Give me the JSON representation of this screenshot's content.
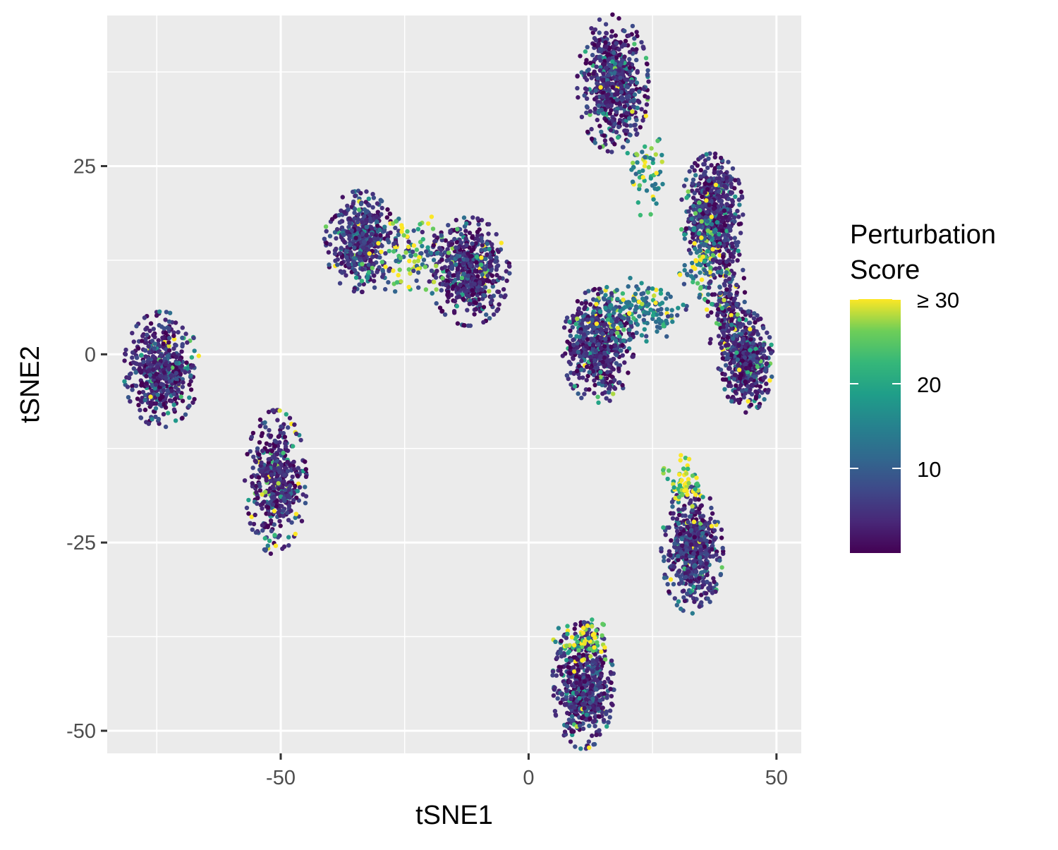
{
  "chart_data": {
    "type": "scatter",
    "title": "",
    "xlabel": "tSNE1",
    "ylabel": "tSNE2",
    "xlim": [
      -85,
      55
    ],
    "ylim": [
      -53,
      45
    ],
    "x_ticks": [
      -50,
      0,
      50
    ],
    "y_ticks": [
      -50,
      -25,
      0,
      25
    ],
    "x_tick_labels": [
      "-50",
      "0",
      "50"
    ],
    "y_tick_labels": [
      "-50",
      "-25",
      "0",
      "25"
    ],
    "grid": true,
    "background": "#ebebeb",
    "colorscale": "viridis",
    "legend": {
      "title_line1": "Perturbation",
      "title_line2": "Score",
      "position": "right",
      "range": [
        0,
        30
      ],
      "ticks": [
        {
          "value": 10,
          "label": "10"
        },
        {
          "value": 20,
          "label": "20"
        },
        {
          "value": 30,
          "label": "≥ 30"
        }
      ]
    },
    "colors": {
      "low": "#440154",
      "mid_low": "#3b528b",
      "mid": "#21908c",
      "mid_high": "#5dc863",
      "high": "#fde725"
    },
    "clusters": [
      {
        "cx": -74,
        "cy": -2,
        "sx": 3.2,
        "sy": 3.2,
        "n": 520,
        "base": 4,
        "high_fraction": 0.03
      },
      {
        "cx": -51,
        "cy": -17,
        "sx": 2.6,
        "sy": 4.0,
        "n": 480,
        "base": 4,
        "high_fraction": 0.06
      },
      {
        "cx": -34,
        "cy": 15,
        "sx": 3.0,
        "sy": 2.8,
        "n": 480,
        "base": 5,
        "high_fraction": 0.03
      },
      {
        "cx": -12,
        "cy": 11,
        "sx": 3.4,
        "sy": 3.0,
        "n": 560,
        "base": 4,
        "high_fraction": 0.03
      },
      {
        "cx": -23,
        "cy": 13,
        "sx": 4.5,
        "sy": 2.5,
        "n": 130,
        "base": 8,
        "high_fraction": 0.45
      },
      {
        "cx": 17,
        "cy": 36,
        "sx": 3.0,
        "sy": 3.8,
        "n": 640,
        "base": 4,
        "high_fraction": 0.02
      },
      {
        "cx": 24,
        "cy": 24,
        "sx": 1.8,
        "sy": 3.2,
        "n": 60,
        "base": 14,
        "high_fraction": 0.5
      },
      {
        "cx": 14,
        "cy": 1,
        "sx": 3.0,
        "sy": 3.2,
        "n": 560,
        "base": 4,
        "high_fraction": 0.03
      },
      {
        "cx": 22,
        "cy": 6,
        "sx": 4.5,
        "sy": 1.8,
        "n": 180,
        "base": 12,
        "high_fraction": 0.15
      },
      {
        "cx": 37,
        "cy": 19,
        "sx": 2.6,
        "sy": 3.2,
        "n": 560,
        "base": 4,
        "high_fraction": 0.02
      },
      {
        "cx": 35,
        "cy": 13,
        "sx": 2.0,
        "sy": 3.0,
        "n": 120,
        "base": 12,
        "high_fraction": 0.35
      },
      {
        "cx": 40,
        "cy": 6,
        "sx": 1.6,
        "sy": 4.0,
        "n": 220,
        "base": 4,
        "high_fraction": 0.05
      },
      {
        "cx": 44,
        "cy": -1,
        "sx": 2.2,
        "sy": 2.8,
        "n": 480,
        "base": 4,
        "high_fraction": 0.04
      },
      {
        "cx": 33,
        "cy": -26,
        "sx": 2.6,
        "sy": 3.5,
        "n": 560,
        "base": 5,
        "high_fraction": 0.03
      },
      {
        "cx": 31,
        "cy": -17,
        "sx": 1.8,
        "sy": 1.5,
        "n": 60,
        "base": 20,
        "high_fraction": 0.7
      },
      {
        "cx": 11,
        "cy": -44,
        "sx": 2.6,
        "sy": 3.5,
        "n": 600,
        "base": 4,
        "high_fraction": 0.03
      },
      {
        "cx": 11,
        "cy": -38,
        "sx": 2.5,
        "sy": 1.2,
        "n": 60,
        "base": 20,
        "high_fraction": 0.7
      }
    ]
  }
}
